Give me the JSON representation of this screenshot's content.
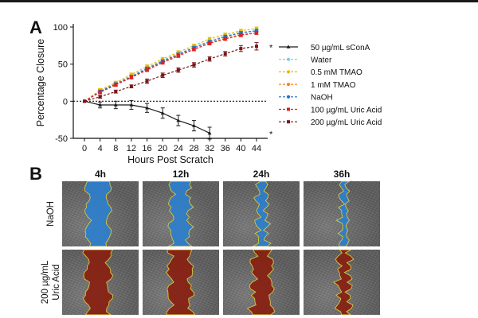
{
  "panels": {
    "a_label": "A",
    "b_label": "B"
  },
  "chart_data": {
    "type": "line",
    "xlabel": "Hours Post Scratch",
    "ylabel": "Percentage Closure",
    "x": [
      0,
      4,
      8,
      12,
      16,
      20,
      24,
      28,
      32,
      36,
      40,
      44
    ],
    "xlim": [
      0,
      44
    ],
    "ylim": [
      -50,
      100
    ],
    "yticks": [
      -50,
      0,
      50,
      100
    ],
    "legend_position": "right",
    "series": [
      {
        "name": "50 µg/mL sConA",
        "color": "#1a1a1a",
        "marker": "triangle",
        "values": [
          0,
          -5,
          -5,
          -5,
          -9,
          -16,
          -26,
          -33,
          -43,
          null,
          null,
          null
        ],
        "errors": [
          0,
          4,
          5,
          6,
          6,
          7,
          7,
          7,
          8,
          null,
          null,
          null
        ]
      },
      {
        "name": "Water",
        "color": "#7fc8ef",
        "marker": "circle",
        "values": [
          0,
          14,
          24,
          34,
          45,
          55,
          64,
          73,
          81,
          88,
          93,
          95
        ],
        "errors": [
          0,
          2,
          2,
          2,
          2,
          2,
          2,
          2,
          2,
          2,
          2,
          2
        ]
      },
      {
        "name": "0.5 mM TMAO",
        "color": "#f0b800",
        "marker": "circle",
        "values": [
          0,
          15,
          25,
          36,
          47,
          57,
          66,
          75,
          84,
          90,
          95,
          98
        ],
        "errors": [
          0,
          2,
          2,
          2,
          2,
          2,
          2,
          2,
          2,
          2,
          2,
          2
        ]
      },
      {
        "name": "1 mM TMAO",
        "color": "#f08a1c",
        "marker": "circle",
        "values": [
          0,
          13,
          23,
          33,
          43,
          53,
          62,
          70,
          78,
          85,
          90,
          92
        ],
        "errors": [
          0,
          2,
          2,
          2,
          2,
          2,
          2,
          2,
          2,
          2,
          2,
          2
        ]
      },
      {
        "name": "NaOH",
        "color": "#1f73c8",
        "marker": "circle",
        "values": [
          0,
          13,
          23,
          33,
          44,
          54,
          63,
          72,
          80,
          87,
          92,
          95
        ],
        "errors": [
          0,
          2,
          2,
          2,
          2,
          2,
          2,
          2,
          2,
          2,
          2,
          2
        ]
      },
      {
        "name": "100 µg/mL Uric Acid",
        "color": "#e02020",
        "marker": "square",
        "values": [
          0,
          12,
          22,
          32,
          42,
          52,
          61,
          70,
          78,
          84,
          89,
          92
        ],
        "errors": [
          0,
          2,
          2,
          2,
          2,
          2,
          2,
          2,
          2,
          2,
          2,
          2
        ]
      },
      {
        "name": "200 µg/mL Uric Acid",
        "color": "#7a1616",
        "marker": "square",
        "values": [
          0,
          6,
          13,
          20,
          27,
          35,
          42,
          49,
          57,
          64,
          71,
          74
        ],
        "errors": [
          0,
          2,
          2,
          2,
          3,
          3,
          3,
          3,
          3,
          3,
          4,
          5
        ]
      }
    ],
    "annotations": [
      {
        "text": "*",
        "series": "200 µg/mL Uric Acid",
        "x": 44
      },
      {
        "text": "*",
        "series": "50 µg/mL sConA",
        "x": 44
      }
    ]
  },
  "microscopy": {
    "timepoints": [
      "4h",
      "12h",
      "24h",
      "36h"
    ],
    "rows": [
      {
        "label_line1": "NaOH",
        "label_line2": "",
        "fill_color": "#2a7fd0",
        "gap_widths": [
          0.28,
          0.24,
          0.12,
          0.08
        ]
      },
      {
        "label_line1": "200 µg/mL",
        "label_line2": "Uric Acid",
        "fill_color": "#8a1c0c",
        "gap_widths": [
          0.3,
          0.28,
          0.24,
          0.14
        ]
      }
    ]
  }
}
